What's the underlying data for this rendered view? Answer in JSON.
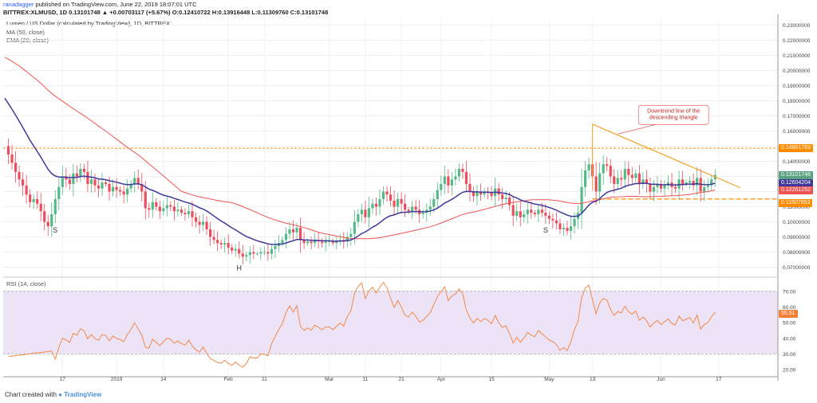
{
  "header": {
    "author": "ranadagger",
    "published": "published on TradingView.com, June 22, 2019 18:07:01 UTC",
    "symbol_line": "BITTREX:XLMUSD, 1D 0.13101748 ▲ +0.00703117 (+5.67%) O:0.12410722 H:0.13916448 L:0.11309760 C:0.13101748",
    "title": "Lumen / US Dollar (calculated by TradingView), 1D, BITTREX",
    "ma_label": "MA (50, close)",
    "ema_label": "EMA (20, close)",
    "rsi_label": "RSI (14, close)"
  },
  "watermark": {
    "prefix": "Chart created with",
    "brand": "TradingView"
  },
  "colors": {
    "up": "#53b987",
    "down": "#eb4d5c",
    "ma": "#ef5350",
    "ema": "#3f3a9a",
    "trend": "#f2a22b",
    "rsi": "#f57f36",
    "rsi_band": "#ece3f7",
    "resist": "#ff8c00"
  },
  "chart_data": [
    {
      "type": "candlestick",
      "title": "Lumen / US Dollar (calculated by TradingView), 1D, BITTREX",
      "ylim": [
        0.065,
        0.235
      ],
      "y_ticks": [
        0.07,
        0.08,
        0.09,
        0.1,
        0.11,
        0.12,
        0.13,
        0.14,
        0.15,
        0.16,
        0.17,
        0.18,
        0.19,
        0.2,
        0.21,
        0.22,
        0.23
      ],
      "y_tick_labels": [
        "0.07000000",
        "0.08000000",
        "0.09000000",
        "0.10000000",
        "0.11000000",
        "0.12000000",
        "0.13000000",
        "0.14000000",
        "0.15000000",
        "0.16000000",
        "0.17000000",
        "0.18000000",
        "0.19000000",
        "0.20000000",
        "0.21000000",
        "0.22000000",
        "0.23000000"
      ],
      "x_ticks": [
        {
          "label": "17",
          "day": 16
        },
        {
          "label": "2019",
          "day": 31
        },
        {
          "label": "14",
          "day": 44
        },
        {
          "label": "Feb",
          "day": 62
        },
        {
          "label": "11",
          "day": 72
        },
        {
          "label": "Mar",
          "day": 90
        },
        {
          "label": "11",
          "day": 100
        },
        {
          "label": "21",
          "day": 110
        },
        {
          "label": "Apr",
          "day": 121
        },
        {
          "label": "15",
          "day": 135
        },
        {
          "label": "May",
          "day": 151
        },
        {
          "label": "13",
          "day": 163
        },
        {
          "label": "Jun",
          "day": 182
        },
        {
          "label": "17",
          "day": 198
        }
      ],
      "day_range": [
        0,
        210
      ],
      "closes": [
        0.15,
        0.1445,
        0.139,
        0.133,
        0.128,
        0.124,
        0.118,
        0.113,
        0.115,
        0.112,
        0.107,
        0.1,
        0.097,
        0.105,
        0.115,
        0.123,
        0.13,
        0.128,
        0.125,
        0.132,
        0.13,
        0.135,
        0.133,
        0.125,
        0.128,
        0.124,
        0.122,
        0.126,
        0.125,
        0.12,
        0.123,
        0.121,
        0.12,
        0.118,
        0.122,
        0.125,
        0.129,
        0.125,
        0.12,
        0.109,
        0.108,
        0.113,
        0.11,
        0.107,
        0.109,
        0.111,
        0.11,
        0.107,
        0.108,
        0.106,
        0.105,
        0.107,
        0.103,
        0.1,
        0.098,
        0.1,
        0.095,
        0.09,
        0.088,
        0.086,
        0.085,
        0.086,
        0.083,
        0.081,
        0.082,
        0.079,
        0.077,
        0.078,
        0.08,
        0.079,
        0.079,
        0.08,
        0.08,
        0.079,
        0.082,
        0.084,
        0.086,
        0.088,
        0.092,
        0.095,
        0.093,
        0.096,
        0.088,
        0.086,
        0.087,
        0.086,
        0.088,
        0.087,
        0.086,
        0.087,
        0.087,
        0.086,
        0.087,
        0.088,
        0.087,
        0.09,
        0.092,
        0.1,
        0.105,
        0.108,
        0.103,
        0.109,
        0.112,
        0.11,
        0.115,
        0.12,
        0.118,
        0.114,
        0.11,
        0.115,
        0.112,
        0.108,
        0.107,
        0.11,
        0.108,
        0.105,
        0.106,
        0.108,
        0.11,
        0.115,
        0.121,
        0.125,
        0.13,
        0.124,
        0.128,
        0.13,
        0.135,
        0.133,
        0.125,
        0.12,
        0.117,
        0.12,
        0.118,
        0.12,
        0.119,
        0.117,
        0.122,
        0.118,
        0.115,
        0.116,
        0.111,
        0.104,
        0.107,
        0.103,
        0.105,
        0.108,
        0.106,
        0.105,
        0.108,
        0.106,
        0.104,
        0.102,
        0.101,
        0.099,
        0.095,
        0.096,
        0.094,
        0.097,
        0.102,
        0.106,
        0.123,
        0.134,
        0.138,
        0.13,
        0.12,
        0.132,
        0.138,
        0.137,
        0.13,
        0.125,
        0.129,
        0.128,
        0.135,
        0.131,
        0.129,
        0.132,
        0.125,
        0.128,
        0.125,
        0.12,
        0.123,
        0.125,
        0.122,
        0.124,
        0.126,
        0.123,
        0.122,
        0.128,
        0.125,
        0.126,
        0.127,
        0.124,
        0.129,
        0.12,
        0.123,
        0.124,
        0.128,
        0.131
      ],
      "ma50_label": "0.12261252",
      "ema20_label": "0.12604204",
      "last_label": "0.13101748",
      "resistance": 0.14861769,
      "resistance_label": "0.14861769",
      "support": 0.11507853,
      "support_label": "0.11507853",
      "annotation": {
        "lines": [
          "Downtrend line of the",
          "descending triangle"
        ],
        "price": 0.158,
        "day": 170
      },
      "trendline": [
        {
          "day": 163,
          "price": 0.1645
        },
        {
          "day": 204,
          "price": 0.1225
        }
      ],
      "pattern_labels": [
        {
          "text": "S",
          "day": 14,
          "price": 0.093
        },
        {
          "text": "H",
          "day": 65,
          "price": 0.068
        },
        {
          "text": "S",
          "day": 150,
          "price": 0.093
        }
      ]
    },
    {
      "type": "line",
      "title": "RSI (14, close)",
      "ylim": [
        17,
        77
      ],
      "y_ticks": [
        20,
        30,
        40,
        50,
        60,
        70
      ],
      "y_tick_labels": [
        "20.00",
        "30.00",
        "40.00",
        "50.00",
        "60.00",
        "70.00"
      ],
      "band": [
        30,
        70
      ],
      "last_label": "55.51"
    }
  ]
}
